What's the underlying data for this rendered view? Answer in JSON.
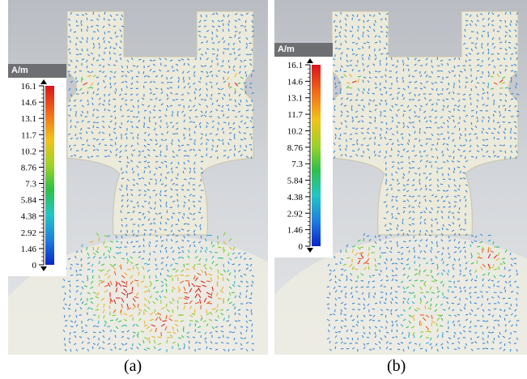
{
  "unit_label": "A/m",
  "scale_ticks": [
    "16.1",
    "14.6",
    "13.1",
    "11.7",
    "10.2",
    "8.76",
    "7.3",
    "5.84",
    "4.38",
    "2.92",
    "1.46",
    "0"
  ],
  "colors": {
    "background_top": "#b9bcc2",
    "background_bottom": "#e4e6e8",
    "legend_header": "#6e6f72",
    "structure_fill": "#eceadb",
    "vector_base": "#2f7fd1",
    "hotspot": "#e0201a"
  },
  "panels": [
    {
      "id": "a",
      "caption": "(a)"
    },
    {
      "id": "b",
      "caption": "(b)"
    }
  ]
}
